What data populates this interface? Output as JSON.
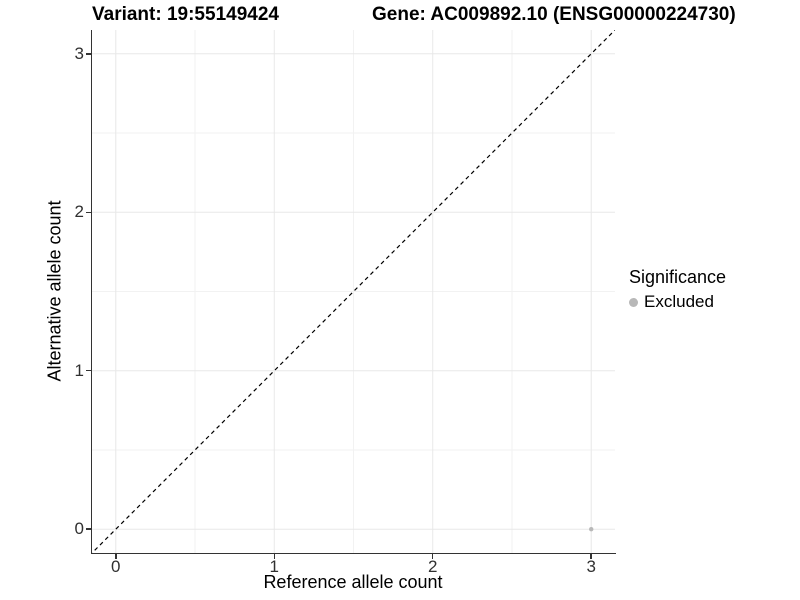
{
  "chart_data": {
    "type": "scatter",
    "titles": {
      "left": "Variant: 19:55149424",
      "right": "Gene: AC009892.10 (ENSG00000224730)"
    },
    "xlabel": "Reference allele count",
    "ylabel": "Alternative allele count",
    "xlim": [
      -0.15,
      3.15
    ],
    "ylim": [
      -0.15,
      3.15
    ],
    "x_ticks": [
      0,
      1,
      2,
      3
    ],
    "y_ticks": [
      0,
      1,
      2,
      3
    ],
    "x_minor_ticks": [
      0.5,
      1.5,
      2.5
    ],
    "y_minor_ticks": [
      0.5,
      1.5,
      2.5
    ],
    "grid": true,
    "identity_line": {
      "slope": 1,
      "intercept": 0,
      "style": "dashed",
      "color": "#000000"
    },
    "points": [
      {
        "x": 3,
        "y": 0,
        "significance": "Excluded"
      }
    ],
    "legend": {
      "position": "right",
      "title": "Significance",
      "items": [
        {
          "label": "Excluded",
          "color": "#b8b8b8"
        }
      ]
    },
    "colors": {
      "point": "#b8b8b8",
      "grid_major": "#e8e8e8",
      "grid_minor": "#f2f2f2",
      "axis": "#333333",
      "tick_text": "#303030",
      "title_text": "#000000"
    }
  }
}
